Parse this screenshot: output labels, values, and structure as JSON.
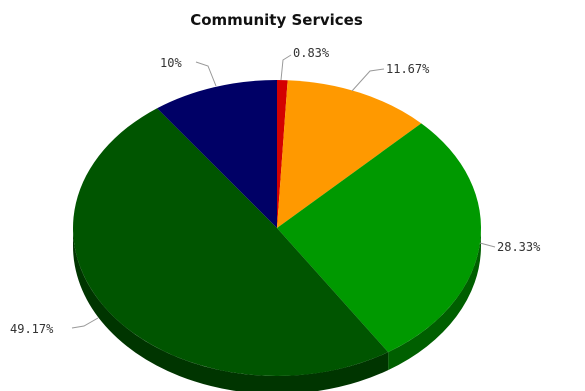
{
  "chart_data": {
    "type": "pie",
    "title": "Community Services",
    "slices": [
      {
        "label": "0.83%",
        "value": 0.83,
        "color": "#d40000"
      },
      {
        "label": "11.67%",
        "value": 11.67,
        "color": "#ff9900"
      },
      {
        "label": "28.33%",
        "value": 28.33,
        "color": "#009900"
      },
      {
        "label": "49.17%",
        "value": 49.17,
        "color": "#005500"
      },
      {
        "label": "10%",
        "value": 10,
        "color": "#000066"
      }
    ],
    "style": "3d"
  }
}
